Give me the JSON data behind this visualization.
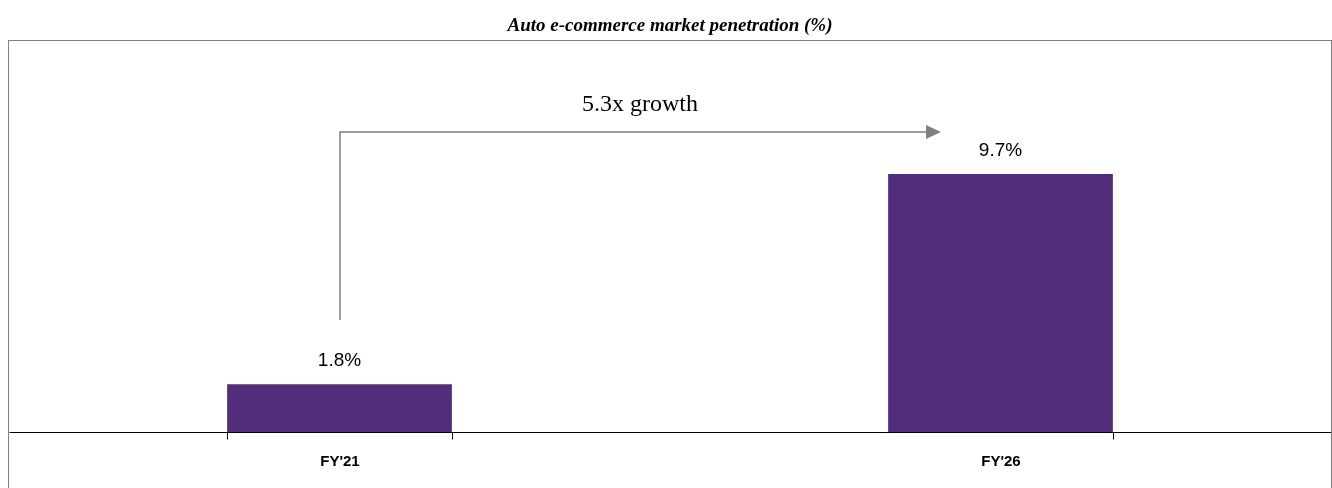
{
  "chart_data": {
    "type": "bar",
    "title": "Auto e-commerce market penetration (%)",
    "categories": [
      "FY'21",
      "FY'26"
    ],
    "values": [
      1.8,
      9.7
    ],
    "color": "#512d7c",
    "value_labels": [
      "1.8%",
      "9.7%"
    ],
    "annotations": [
      "5.3x growth"
    ],
    "grid": false
  }
}
